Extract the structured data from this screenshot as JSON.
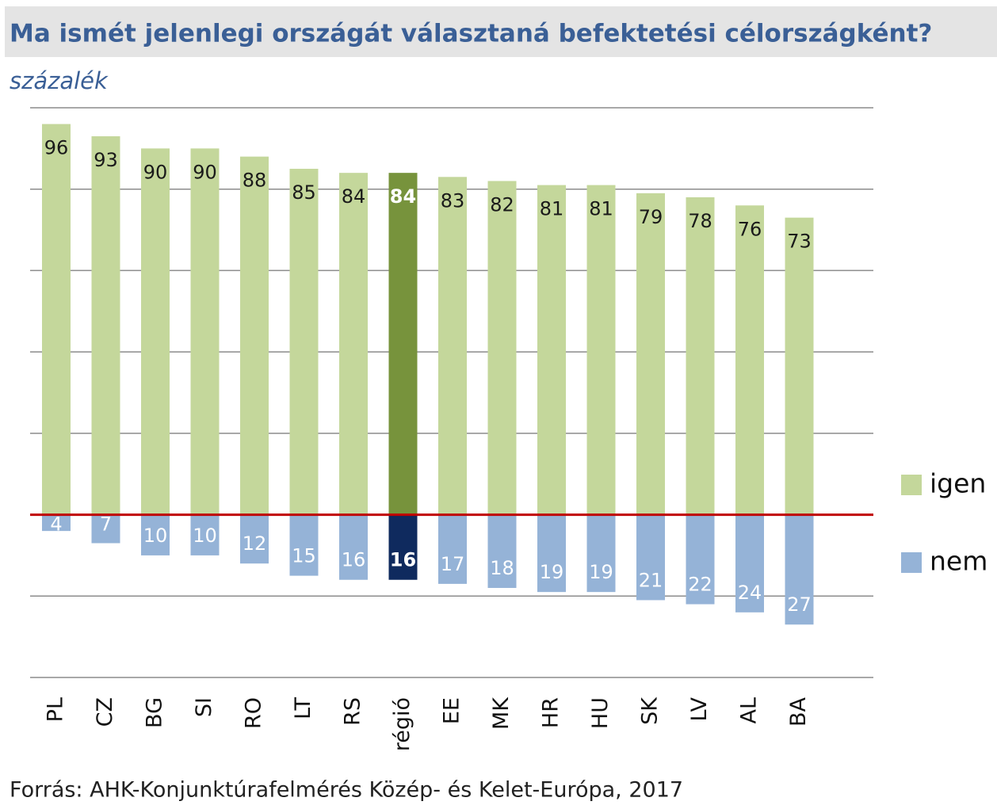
{
  "chart_data": {
    "type": "diverging_bar",
    "title": "Ma ismét jelenlegi országát választaná befektetési célországként?",
    "subtitle": "százalék",
    "source": "Forrás: AHK-Konjunktúrafelmérés Közép- és Kelet-Európa, 2017",
    "categories": [
      "PL",
      "CZ",
      "BG",
      "SI",
      "RO",
      "LT",
      "RS",
      "régió",
      "EE",
      "MK",
      "HR",
      "HU",
      "SK",
      "LV",
      "AL",
      "BA"
    ],
    "series": [
      {
        "name": "igen",
        "color": "#c4d79b",
        "colors": [
          "#c4d79b",
          "#c4d79b",
          "#c4d79b",
          "#c4d79b",
          "#c4d79b",
          "#c4d79b",
          "#c4d79b",
          "#77933c",
          "#c4d79b",
          "#c4d79b",
          "#c4d79b",
          "#c4d79b",
          "#c4d79b",
          "#c4d79b",
          "#c4d79b",
          "#c4d79b"
        ],
        "values": [
          96,
          93,
          90,
          90,
          88,
          85,
          84,
          84,
          83,
          82,
          81,
          81,
          79,
          78,
          76,
          73
        ]
      },
      {
        "name": "nem",
        "color": "#95b3d7",
        "colors": [
          "#95b3d7",
          "#95b3d7",
          "#95b3d7",
          "#95b3d7",
          "#95b3d7",
          "#95b3d7",
          "#95b3d7",
          "#0f2a5e",
          "#95b3d7",
          "#95b3d7",
          "#95b3d7",
          "#95b3d7",
          "#95b3d7",
          "#95b3d7",
          "#95b3d7",
          "#95b3d7"
        ],
        "values": [
          -4,
          -7,
          -10,
          -10,
          -12,
          -15,
          -16,
          -16,
          -17,
          -18,
          -19,
          -19,
          -21,
          -22,
          -24,
          -27
        ],
        "value_labels": [
          "4",
          "7",
          "10",
          "10",
          "12",
          "15",
          "16",
          "16",
          "17",
          "18",
          "19",
          "19",
          "21",
          "22",
          "24",
          "27"
        ]
      }
    ],
    "ylim": [
      -40,
      100
    ],
    "yticks": [
      -40,
      -20,
      0,
      20,
      40,
      60,
      80,
      100
    ],
    "grid": true,
    "zero_line_color": "#c00000",
    "legend": "right"
  }
}
